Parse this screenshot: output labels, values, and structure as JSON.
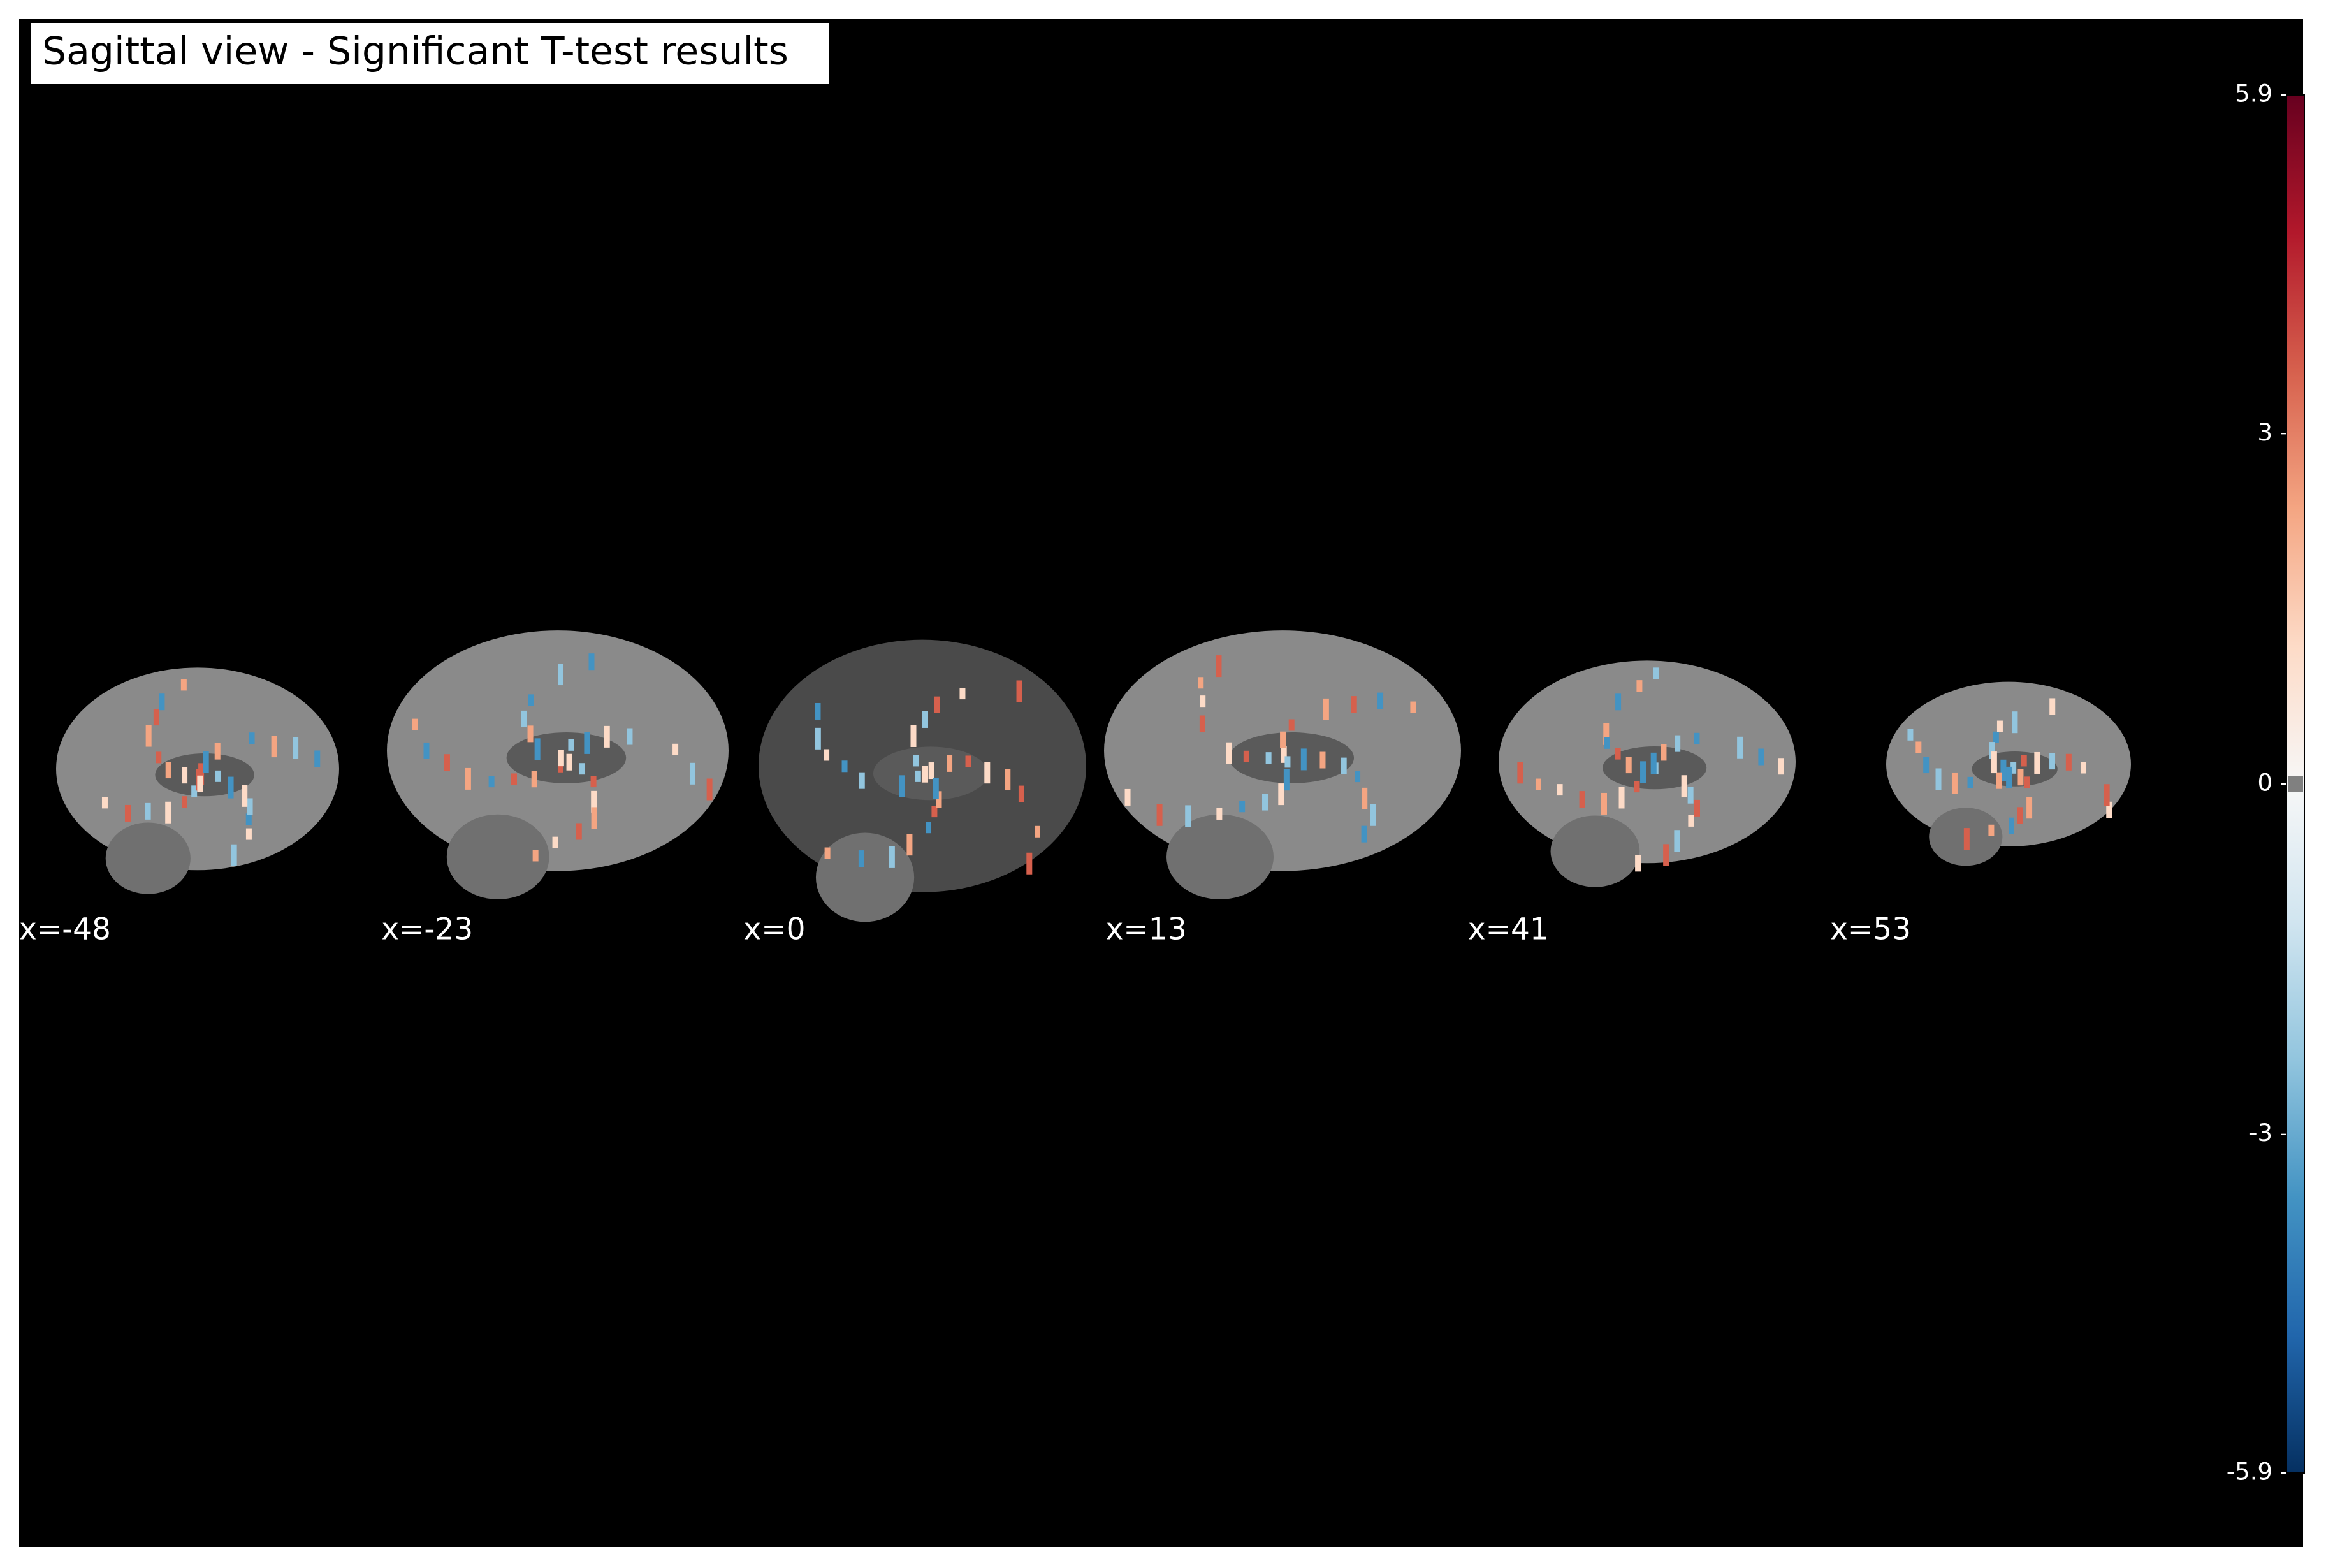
{
  "chart_data": {
    "type": "brain-slices",
    "title": "Sagittal view - Significant T-test results",
    "categories": [
      "x=-48",
      "x=-23",
      "x=0",
      "x=13",
      "x=41",
      "x=53"
    ],
    "ylim": [
      -5.9,
      5.9
    ],
    "yticks": [
      -5.9,
      -3,
      0,
      3,
      5.9
    ]
  }
}
